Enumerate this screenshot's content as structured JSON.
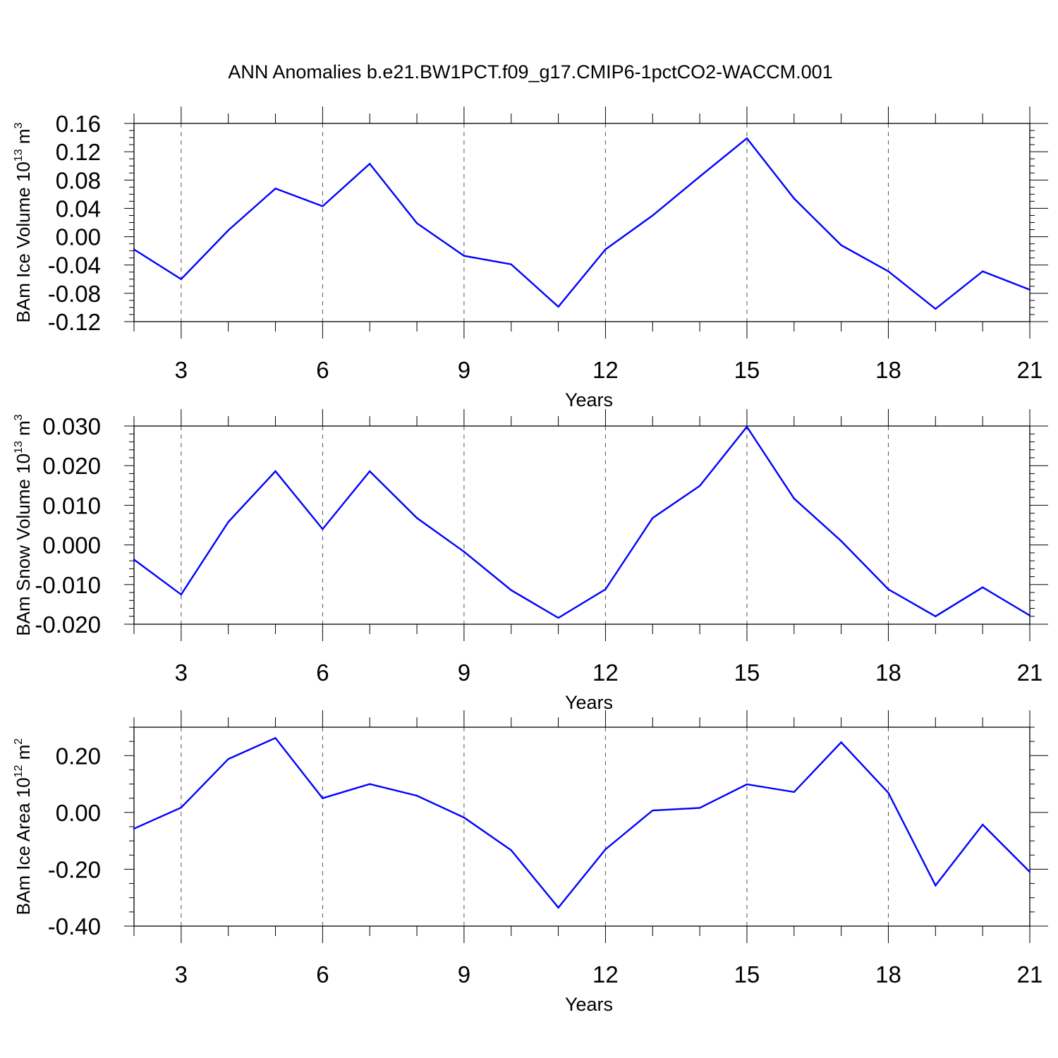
{
  "figure": {
    "title": "ANN Anomalies b.e21.BW1PCT.f09_g17.CMIP6-1pctCO2-WACCM.001"
  },
  "colors": {
    "series_line": "#0000ff",
    "axes": "#000000",
    "grid": "#555555",
    "background": "#ffffff"
  },
  "chart_data": [
    {
      "type": "line",
      "title": "",
      "xlabel": "Years",
      "ylabel": {
        "base": "BAm Ice Volume 10",
        "exp": "13",
        "unit": " m",
        "unit_exp": "3"
      },
      "xlim": [
        2,
        21
      ],
      "ylim": [
        -0.12,
        0.16
      ],
      "x_ticks": [
        3,
        6,
        9,
        12,
        15,
        18,
        21
      ],
      "y_ticks": [
        -0.12,
        -0.08,
        -0.04,
        0.0,
        0.04,
        0.08,
        0.12,
        0.16
      ],
      "y_tick_labels": [
        "-0.12",
        "-0.08",
        "-0.04",
        "0.00",
        "0.04",
        "0.08",
        "0.12",
        "0.16"
      ],
      "y_minor_step": 0.01,
      "grid": "vertical dashed at major x ticks",
      "x": [
        2,
        3,
        4,
        5,
        6,
        7,
        8,
        9,
        10,
        11,
        12,
        13,
        14,
        15,
        16,
        17,
        18,
        19,
        20,
        21
      ],
      "values": [
        -0.018,
        -0.06,
        0.009,
        0.068,
        0.043,
        0.103,
        0.019,
        -0.027,
        -0.039,
        -0.099,
        -0.018,
        0.03,
        0.085,
        0.139,
        0.054,
        -0.012,
        -0.049,
        -0.102,
        -0.049,
        -0.075
      ]
    },
    {
      "type": "line",
      "title": "",
      "xlabel": "Years",
      "ylabel": {
        "base": "BAm Snow Volume 10",
        "exp": "13",
        "unit": " m",
        "unit_exp": "3"
      },
      "xlim": [
        2,
        21
      ],
      "ylim": [
        -0.02,
        0.03
      ],
      "x_ticks": [
        3,
        6,
        9,
        12,
        15,
        18,
        21
      ],
      "y_ticks": [
        -0.02,
        -0.01,
        0.0,
        0.01,
        0.02,
        0.03
      ],
      "y_tick_labels": [
        "-0.020",
        "-0.010",
        "0.000",
        "0.010",
        "0.020",
        "0.030"
      ],
      "y_minor_step": 0.002,
      "grid": "vertical dashed at major x ticks",
      "x": [
        2,
        3,
        4,
        5,
        6,
        7,
        8,
        9,
        10,
        11,
        12,
        13,
        14,
        15,
        16,
        17,
        18,
        19,
        20,
        21
      ],
      "values": [
        -0.0037,
        -0.0125,
        0.0058,
        0.0186,
        0.004,
        0.0186,
        0.0068,
        -0.0017,
        -0.0114,
        -0.0184,
        -0.0112,
        0.0068,
        0.0149,
        0.0298,
        0.0117,
        0.001,
        -0.0112,
        -0.018,
        -0.0107,
        -0.0178
      ]
    },
    {
      "type": "line",
      "title": "",
      "xlabel": "Years",
      "ylabel": {
        "base": "BAm Ice Area 10",
        "exp": "12",
        "unit": " m",
        "unit_exp": "2"
      },
      "xlim": [
        2,
        21
      ],
      "ylim": [
        -0.4,
        0.3
      ],
      "x_ticks": [
        3,
        6,
        9,
        12,
        15,
        18,
        21
      ],
      "y_ticks": [
        -0.4,
        -0.2,
        0.0,
        0.2
      ],
      "y_tick_labels": [
        "-0.40",
        "-0.20",
        "0.00",
        "0.20"
      ],
      "y_minor_step": 0.05,
      "grid": "vertical dashed at major x ticks",
      "x": [
        2,
        3,
        4,
        5,
        6,
        7,
        8,
        9,
        10,
        11,
        12,
        13,
        14,
        15,
        16,
        17,
        18,
        19,
        20,
        21
      ],
      "values": [
        -0.057,
        0.017,
        0.188,
        0.262,
        0.05,
        0.1,
        0.059,
        -0.018,
        -0.133,
        -0.335,
        -0.13,
        0.007,
        0.016,
        0.099,
        0.072,
        0.247,
        0.069,
        -0.257,
        -0.043,
        -0.209
      ]
    }
  ]
}
